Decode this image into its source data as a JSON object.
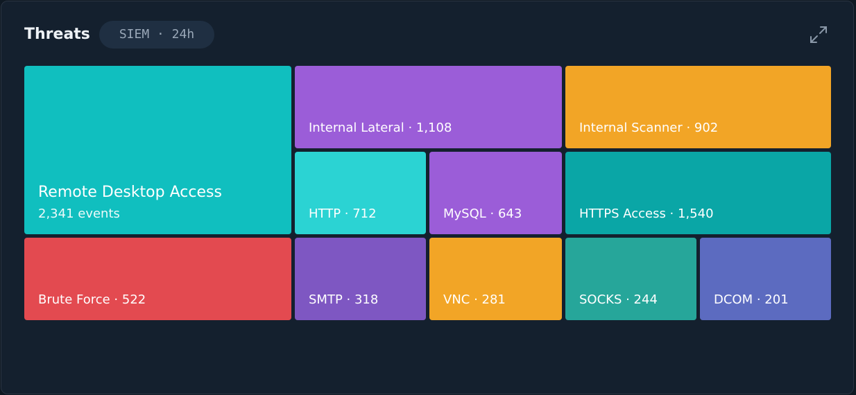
{
  "header": {
    "title": "Threats",
    "badge": "SIEM · 24h"
  },
  "tiles": [
    {
      "label": "Remote Desktop Access",
      "sublabel": "2,341 events",
      "color": "#10bfbf"
    },
    {
      "label": "Internal Lateral · 1,108",
      "color": "#9b5dd8"
    },
    {
      "label": "Internal Scanner · 902",
      "color": "#f2a526"
    },
    {
      "label": "HTTP · 712",
      "color": "#2bd3d3"
    },
    {
      "label": "MySQL · 643",
      "color": "#9b5dd8"
    },
    {
      "label": "HTTPS Access · 1,540",
      "color": "#0aa6a6"
    },
    {
      "label": "Brute Force · 522",
      "color": "#e34a50"
    },
    {
      "label": "SMTP · 318",
      "color": "#7e57c2"
    },
    {
      "label": "VNC · 281",
      "color": "#f2a526"
    },
    {
      "label": "SOCKS · 244",
      "color": "#26a69a"
    },
    {
      "label": "DCOM · 201",
      "color": "#5c6bc0"
    }
  ]
}
